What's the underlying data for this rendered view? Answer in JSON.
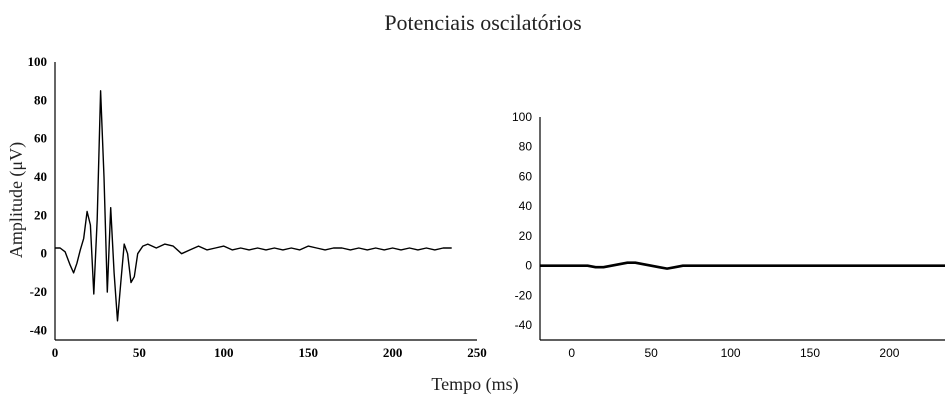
{
  "title": "Potenciais oscilatórios",
  "xlabel": "Tempo (ms)",
  "ylabel": "Amplitude (μV)",
  "chart_data": [
    {
      "type": "line",
      "xlim": [
        0,
        250
      ],
      "ylim": [
        -45,
        100
      ],
      "xticks": [
        "0",
        "50",
        "100",
        "150",
        "200",
        "250"
      ],
      "yticks": [
        "100",
        "80",
        "60",
        "40",
        "20",
        "0",
        "-20",
        "-40"
      ],
      "xtick_values": [
        0,
        50,
        100,
        150,
        200,
        250
      ],
      "ytick_values": [
        100,
        80,
        60,
        40,
        20,
        0,
        -20,
        -40
      ],
      "grid": false,
      "series": [
        {
          "color": "#000000",
          "x": [
            0,
            3,
            6,
            9,
            11,
            13,
            15,
            17,
            19,
            21,
            23,
            25,
            27,
            29,
            31,
            33,
            35,
            37,
            39,
            41,
            43,
            45,
            47,
            49,
            52,
            55,
            60,
            65,
            70,
            75,
            80,
            85,
            90,
            95,
            100,
            105,
            110,
            115,
            120,
            125,
            130,
            135,
            140,
            145,
            150,
            155,
            160,
            165,
            170,
            175,
            180,
            185,
            190,
            195,
            200,
            205,
            210,
            215,
            220,
            225,
            230,
            235
          ],
          "y": [
            3,
            3,
            1,
            -6,
            -10,
            -5,
            2,
            8,
            22,
            15,
            -21,
            18,
            85,
            40,
            -20,
            24,
            -10,
            -35,
            -15,
            5,
            0,
            -15,
            -12,
            0,
            4,
            5,
            3,
            5,
            4,
            0,
            2,
            4,
            2,
            3,
            4,
            2,
            3,
            2,
            3,
            2,
            3,
            2,
            3,
            2,
            4,
            3,
            2,
            3,
            3,
            2,
            3,
            2,
            3,
            2,
            3,
            2,
            3,
            2,
            3,
            2,
            3,
            3
          ]
        }
      ]
    },
    {
      "type": "line",
      "xlim": [
        -20,
        235
      ],
      "ylim": [
        -50,
        100
      ],
      "xticks": [
        "0",
        "50",
        "100",
        "150",
        "200"
      ],
      "yticks": [
        "100",
        "80",
        "60",
        "40",
        "20",
        "0",
        "-20",
        "-40"
      ],
      "xtick_values": [
        0,
        50,
        100,
        150,
        200
      ],
      "ytick_values": [
        100,
        80,
        60,
        40,
        20,
        0,
        -20,
        -40
      ],
      "grid": false,
      "series": [
        {
          "color": "#000000",
          "x": [
            -20,
            0,
            10,
            15,
            20,
            25,
            30,
            35,
            40,
            45,
            50,
            55,
            60,
            65,
            70,
            75,
            80,
            100,
            150,
            200,
            235
          ],
          "y": [
            0,
            0,
            0,
            -1,
            -1,
            0,
            1,
            2,
            2,
            1,
            0,
            -1,
            -2,
            -1,
            0,
            0,
            0,
            0,
            0,
            0,
            0
          ]
        }
      ]
    }
  ]
}
